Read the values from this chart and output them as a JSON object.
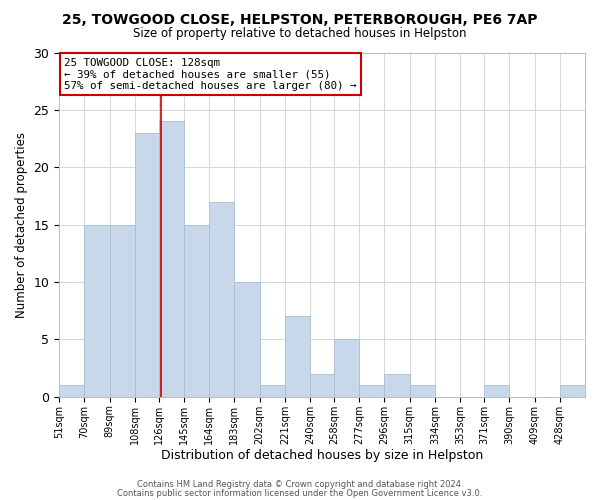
{
  "title": "25, TOWGOOD CLOSE, HELPSTON, PETERBOROUGH, PE6 7AP",
  "subtitle": "Size of property relative to detached houses in Helpston",
  "xlabel": "Distribution of detached houses by size in Helpston",
  "ylabel": "Number of detached properties",
  "bar_color": "#c8d8ea",
  "bar_edge_color": "#a8c0d0",
  "bin_labels": [
    "51sqm",
    "70sqm",
    "89sqm",
    "108sqm",
    "126sqm",
    "145sqm",
    "164sqm",
    "183sqm",
    "202sqm",
    "221sqm",
    "240sqm",
    "258sqm",
    "277sqm",
    "296sqm",
    "315sqm",
    "334sqm",
    "353sqm",
    "371sqm",
    "390sqm",
    "409sqm",
    "428sqm"
  ],
  "values": [
    1,
    15,
    15,
    23,
    24,
    15,
    17,
    10,
    1,
    7,
    2,
    5,
    1,
    2,
    1,
    0,
    0,
    1,
    0,
    0,
    1
  ],
  "bin_edges": [
    51,
    70,
    89,
    108,
    126,
    145,
    164,
    183,
    202,
    221,
    240,
    258,
    277,
    296,
    315,
    334,
    353,
    371,
    390,
    409,
    428,
    447
  ],
  "vline_x": 128,
  "vline_color": "#cc0000",
  "ylim": [
    0,
    30
  ],
  "yticks": [
    0,
    5,
    10,
    15,
    20,
    25,
    30
  ],
  "annotation_title": "25 TOWGOOD CLOSE: 128sqm",
  "annotation_line1": "← 39% of detached houses are smaller (55)",
  "annotation_line2": "57% of semi-detached houses are larger (80) →",
  "annotation_box_color": "#ffffff",
  "annotation_border_color": "#cc0000",
  "footer1": "Contains HM Land Registry data © Crown copyright and database right 2024.",
  "footer2": "Contains public sector information licensed under the Open Government Licence v3.0.",
  "background_color": "#ffffff",
  "grid_color": "#d0d8e0"
}
